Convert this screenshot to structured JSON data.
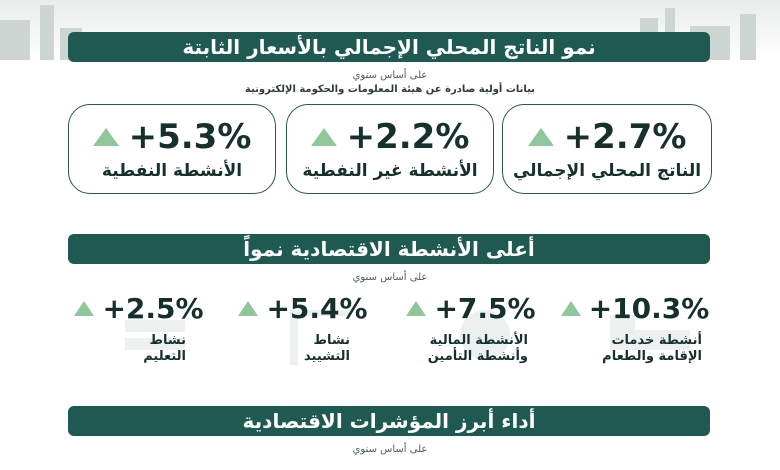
{
  "colors": {
    "banner": "#1e5a52",
    "accent_up": "#8fc79a",
    "text": "#16302c",
    "border": "#27594f"
  },
  "section1": {
    "title": "نمو الناتج المحلي الإجمالي بالأسعار الثابتة",
    "basis": "على أساس سنوي",
    "source": "بيانات أولية صادرة عن هيئة المعلومات والحكومة الإلكترونية",
    "cards": [
      {
        "value": "+2.7%",
        "label": "الناتج المحلي الإجمالي",
        "trend_icon": "triangle-up-icon"
      },
      {
        "value": "+2.2%",
        "label": "الأنشطة غير النفطية",
        "trend_icon": "triangle-up-icon"
      },
      {
        "value": "+5.3%",
        "label": "الأنشطة النفطية",
        "trend_icon": "triangle-up-icon"
      }
    ]
  },
  "section2": {
    "title": "أعلى الأنشطة الاقتصادية نمواً",
    "basis": "على أساس سنوي",
    "items": [
      {
        "value": "+10.3%",
        "label": "أنشطة خدمات\nالإقامة والطعام",
        "trend_icon": "triangle-up-icon"
      },
      {
        "value": "+7.5%",
        "label": "الأنشطة المالية\nوأنشطة التأمين",
        "trend_icon": "triangle-up-icon"
      },
      {
        "value": "+5.4%",
        "label": "نشاط\nالتشييد",
        "trend_icon": "triangle-up-icon"
      },
      {
        "value": "+2.5%",
        "label": "نشاط\nالتعليم",
        "trend_icon": "triangle-up-icon"
      }
    ]
  },
  "section3": {
    "title": "أداء أبرز المؤشرات الاقتصادية",
    "basis": "على أساس سنوي"
  }
}
